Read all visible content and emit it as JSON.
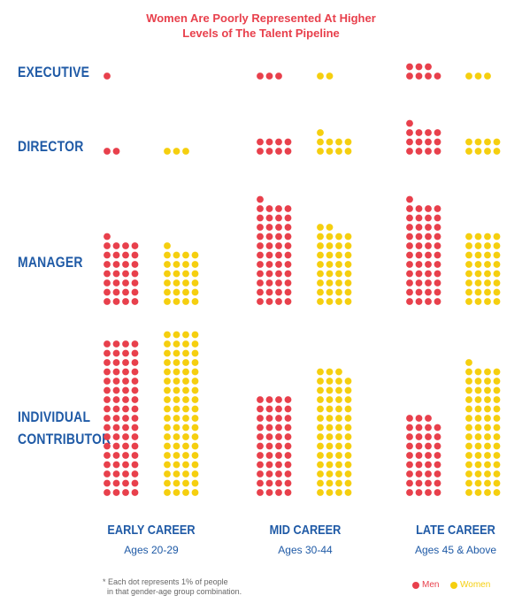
{
  "colors": {
    "men": "#e8404c",
    "women": "#f5cf0f",
    "title": "#e8404c",
    "labels": "#1f5aa6"
  },
  "title_lines": [
    "Women Are Poorly Represented At Higher",
    "Levels of The Talent Pipeline"
  ],
  "levels": [
    "EXECUTIVE",
    "DIRECTOR",
    "MANAGER",
    "INDIVIDUAL CONTRIBUTOR"
  ],
  "level_lines": {
    "executive": "EXECUTIVE",
    "director": "DIRECTOR",
    "manager": "MANAGER",
    "ic1": "INDIVIDUAL",
    "ic2": "CONTRIBUTOR"
  },
  "career_stages": [
    {
      "name": "EARLY CAREER",
      "ages": "Ages 20-29"
    },
    {
      "name": "MID CAREER",
      "ages": "Ages 30-44"
    },
    {
      "name": "LATE CAREER",
      "ages": "Ages 45 & Above"
    }
  ],
  "footnote_lines": [
    "* Each dot represents 1% of people",
    "  in that gender-age group combination."
  ],
  "legend": {
    "men": "Men",
    "women": "Women"
  },
  "chart_data": {
    "type": "dot-matrix",
    "unit": "1 dot = 1% of people in gender-age group",
    "categories": [
      "EARLY CAREER",
      "MID CAREER",
      "LATE CAREER"
    ],
    "levels": [
      "EXECUTIVE",
      "DIRECTOR",
      "MANAGER",
      "INDIVIDUAL CONTRIBUTOR"
    ],
    "series": [
      {
        "name": "Men",
        "values": {
          "EXECUTIVE": [
            1,
            3,
            7
          ],
          "DIRECTOR": [
            2,
            8,
            13
          ],
          "MANAGER": [
            29,
            45,
            45
          ],
          "INDIVIDUAL CONTRIBUTOR": [
            68,
            44,
            35
          ]
        }
      },
      {
        "name": "Women",
        "values": {
          "EXECUTIVE": [
            0,
            2,
            3
          ],
          "DIRECTOR": [
            3,
            9,
            8
          ],
          "MANAGER": [
            25,
            34,
            32
          ],
          "INDIVIDUAL CONTRIBUTOR": [
            72,
            55,
            57
          ]
        }
      }
    ]
  }
}
